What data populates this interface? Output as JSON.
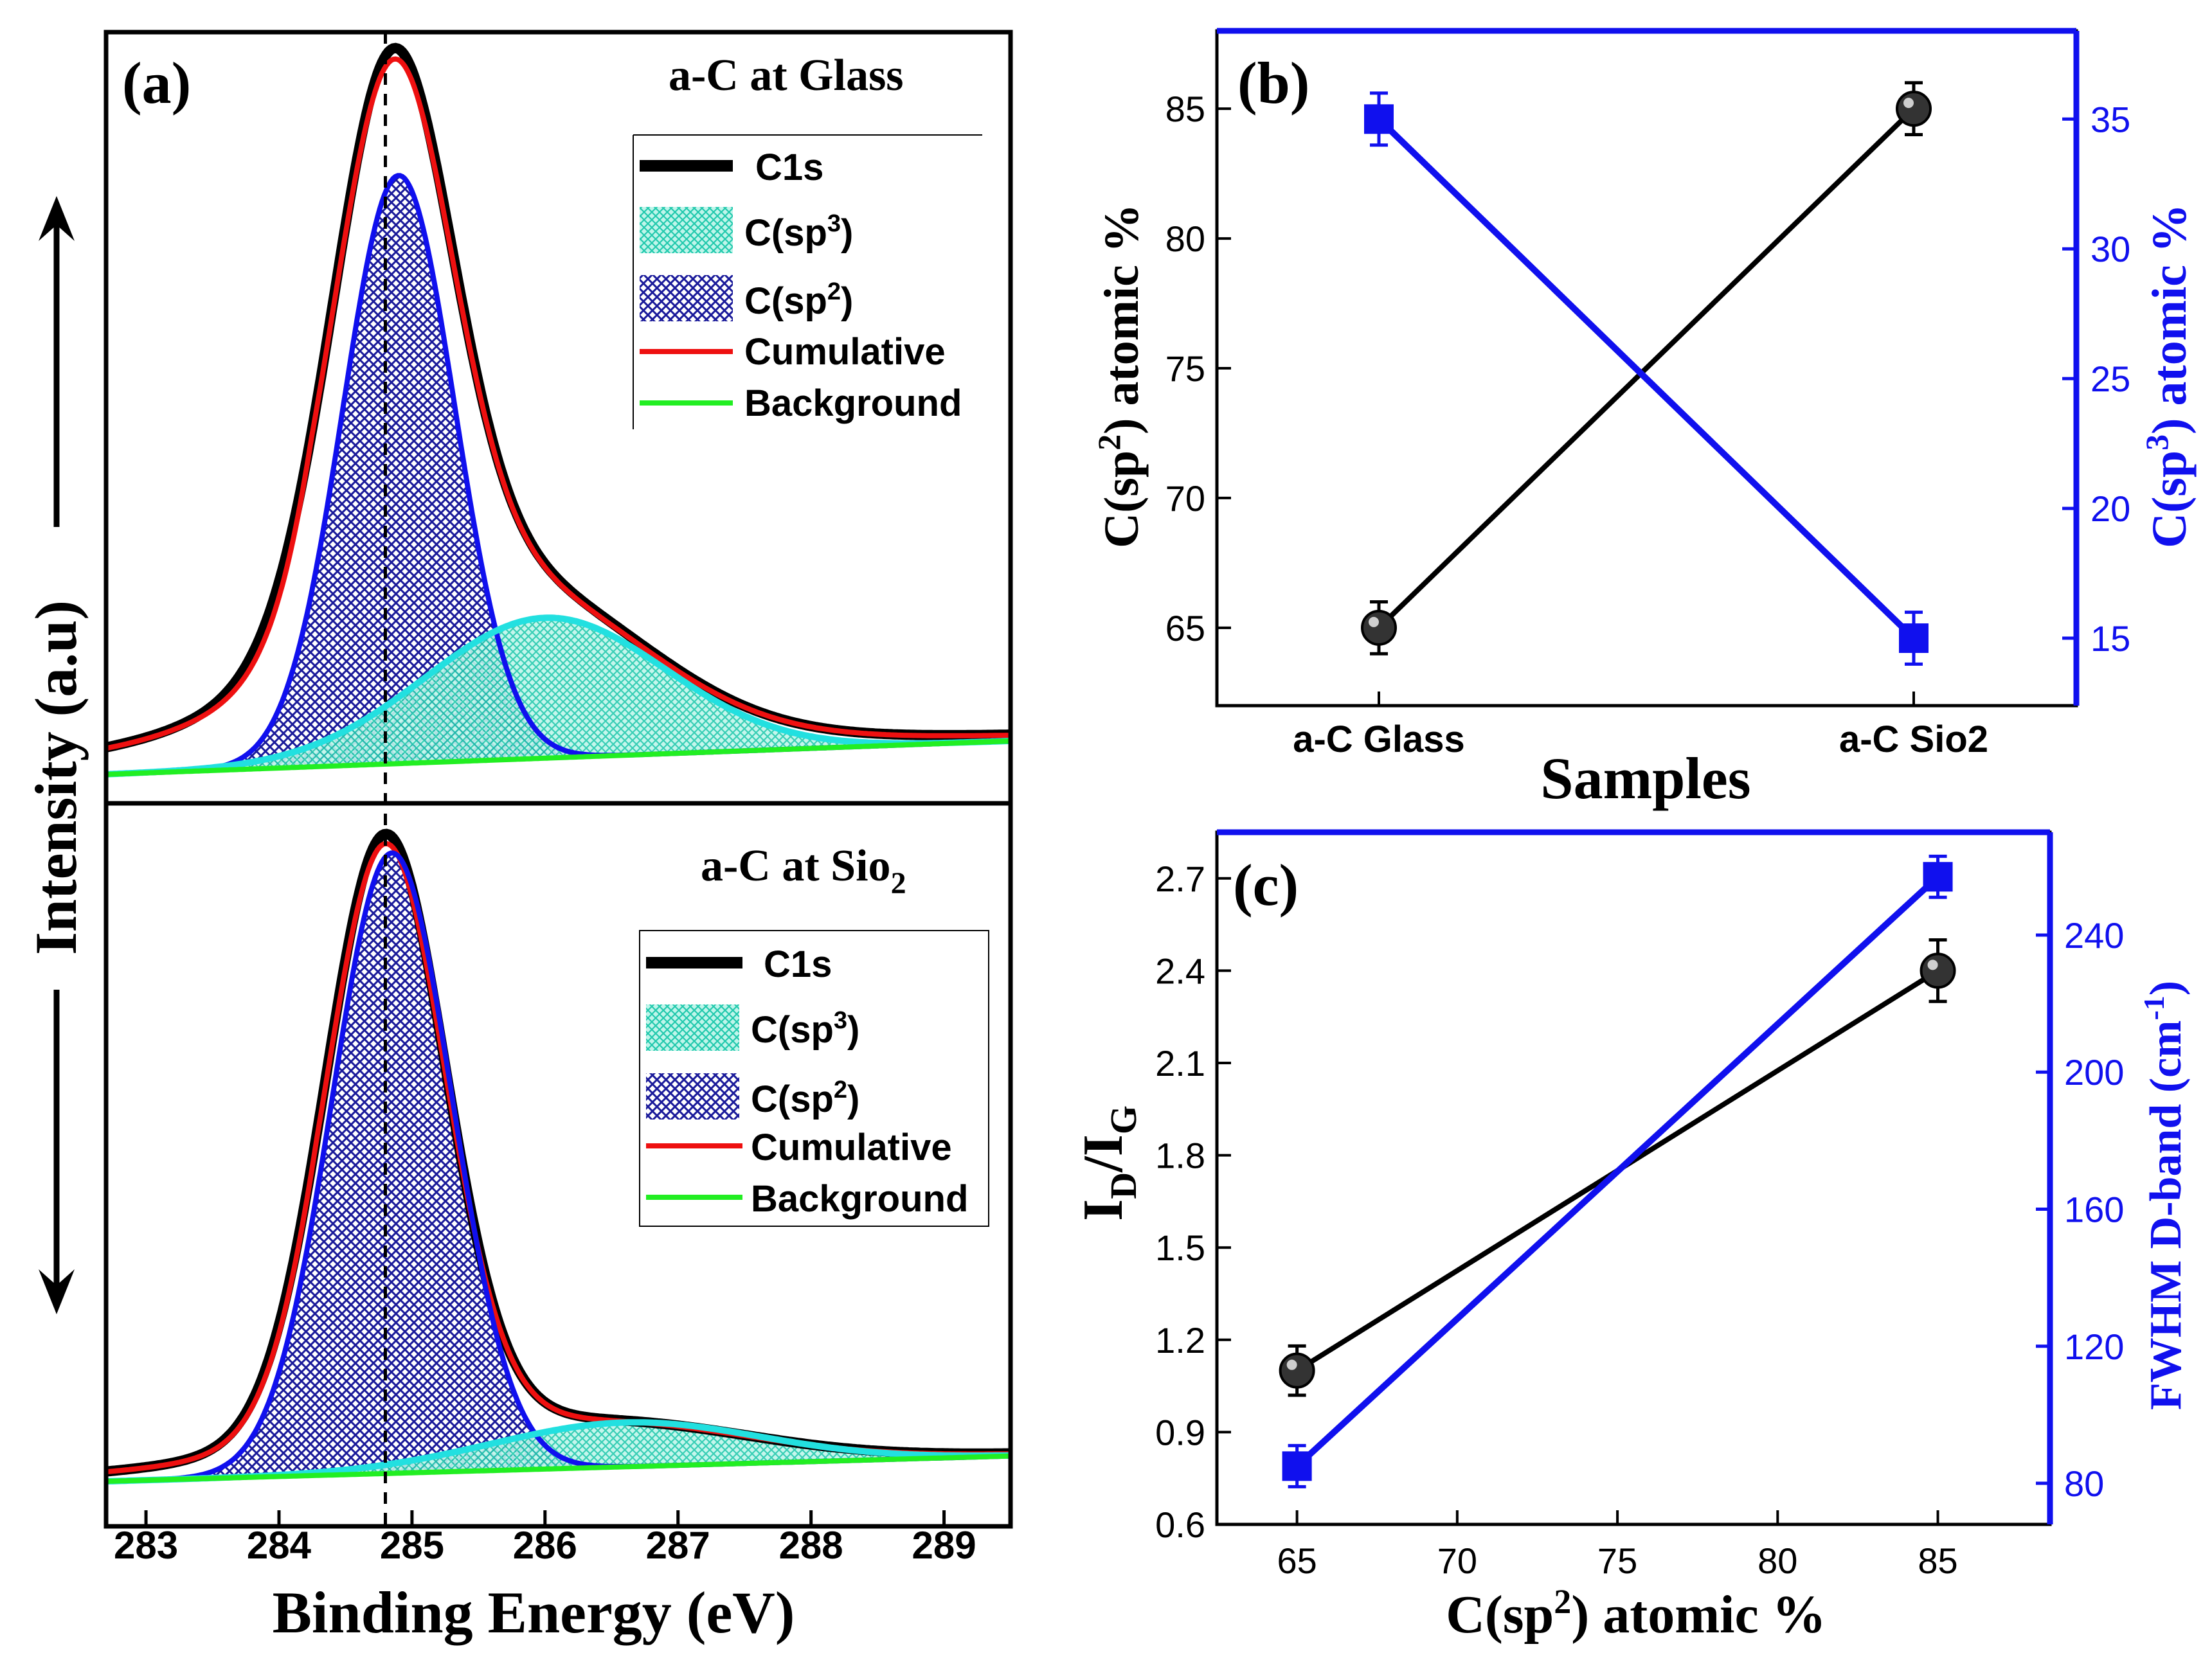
{
  "colors": {
    "black": "#000000",
    "blue": "#1010ee",
    "red": "#ee1010",
    "green": "#22ee22",
    "cyan": "#22e0e0",
    "sp3_fill": "#22d6b8",
    "sp2_fill": "#1a1a9a"
  },
  "panel_a": {
    "label": "(a)",
    "top_title": "a-C at Glass",
    "bottom_title_main": "a-C at Sio",
    "bottom_title_sub": "2",
    "ylabel": "Intensity (a.u)",
    "xlabel": "Binding Energy (eV)",
    "legend": {
      "c1s": "C1s",
      "sp3_main": "C(sp",
      "sp3_sup": "3",
      "sp3_end": ")",
      "sp2_main": "C(sp",
      "sp2_sup": "2",
      "sp2_end": ")",
      "cumulative": "Cumulative",
      "background": "Background"
    }
  },
  "panel_b": {
    "label": "(b)",
    "xlabel": "Samples",
    "ylabel_left_pre": "C(sp",
    "ylabel_left_sup": "2",
    "ylabel_left_post": ") atomic %",
    "ylabel_right_pre": "C(sp",
    "ylabel_right_sup": "3",
    "ylabel_right_post": ") atomic %"
  },
  "panel_c": {
    "label": "(c)",
    "xlabel_pre": "C(sp",
    "xlabel_sup": "2",
    "xlabel_post": ") atomic %",
    "ylabel_left_main": "I",
    "ylabel_left_sub1": "D",
    "ylabel_left_mid": "/I",
    "ylabel_left_sub2": "G",
    "ylabel_right_pre": "FWHM D-band (cm",
    "ylabel_right_sup": "-1",
    "ylabel_right_post": ")"
  },
  "chart_data": [
    {
      "panel": "a",
      "type": "line",
      "title": "a-C at Glass / a-C at Sio2",
      "xlabel": "Binding Energy (eV)",
      "ylabel": "Intensity (a.u)",
      "xlim": [
        282.7,
        289.5
      ],
      "xticks": [
        283,
        284,
        285,
        286,
        287,
        288,
        289
      ],
      "reference_line_x": 284.8,
      "subplots": [
        {
          "name": "a-C at Glass",
          "c1s": {
            "center": 284.85,
            "height": 1.0,
            "width": 0.62,
            "tail": 0.35
          },
          "sp2": {
            "center": 284.9,
            "height": 0.88,
            "sigma": 0.42
          },
          "sp3": {
            "center": 286.0,
            "height": 0.21,
            "sigma": 0.9
          },
          "background": [
            0.0,
            0.05
          ]
        },
        {
          "name": "a-C at Sio2",
          "c1s": {
            "center": 284.8,
            "height": 1.0,
            "width": 0.62,
            "tail": 0.13
          },
          "sp2": {
            "center": 284.85,
            "height": 0.98,
            "sigma": 0.45
          },
          "sp3": {
            "center": 286.6,
            "height": 0.07,
            "sigma": 1.0
          },
          "background": [
            0.0,
            0.04
          ]
        }
      ]
    },
    {
      "panel": "b",
      "type": "line",
      "categories": [
        "a-C Glass",
        "a-C Sio2"
      ],
      "xlabel": "Samples",
      "ylabel": "C(sp2) atomic %",
      "y2label": "C(sp3) atomic %",
      "ylim": [
        62,
        88
      ],
      "yticks": [
        65,
        70,
        75,
        80,
        85
      ],
      "y2lim": [
        12.4,
        38.4
      ],
      "y2ticks": [
        15,
        20,
        25,
        30,
        35
      ],
      "series": [
        {
          "name": "C(sp2)",
          "axis": "left",
          "marker": "circle",
          "values": [
            65,
            85
          ],
          "errors": [
            1,
            1
          ]
        },
        {
          "name": "C(sp3)",
          "axis": "right",
          "marker": "square",
          "values": [
            35,
            15
          ],
          "errors": [
            1,
            1
          ]
        }
      ]
    },
    {
      "panel": "c",
      "type": "line",
      "x": [
        65,
        85
      ],
      "xlabel": "C(sp2) atomic %",
      "ylabel": "ID/IG",
      "y2label": "FWHM D-band (cm-1)",
      "xlim": [
        62.5,
        88.5
      ],
      "xticks": [
        65,
        70,
        75,
        80,
        85
      ],
      "ylim": [
        0.6,
        2.85
      ],
      "yticks": [
        0.6,
        0.9,
        1.2,
        1.5,
        1.8,
        2.1,
        2.4,
        2.7
      ],
      "y2lim": [
        68,
        270
      ],
      "y2ticks": [
        80,
        120,
        160,
        200,
        240
      ],
      "series": [
        {
          "name": "ID/IG",
          "axis": "left",
          "marker": "circle",
          "values": [
            1.1,
            2.4
          ],
          "errors": [
            0.08,
            0.1
          ]
        },
        {
          "name": "FWHM D-band",
          "axis": "right",
          "marker": "square",
          "values": [
            85,
            257
          ],
          "errors": [
            6,
            6
          ]
        }
      ]
    }
  ]
}
